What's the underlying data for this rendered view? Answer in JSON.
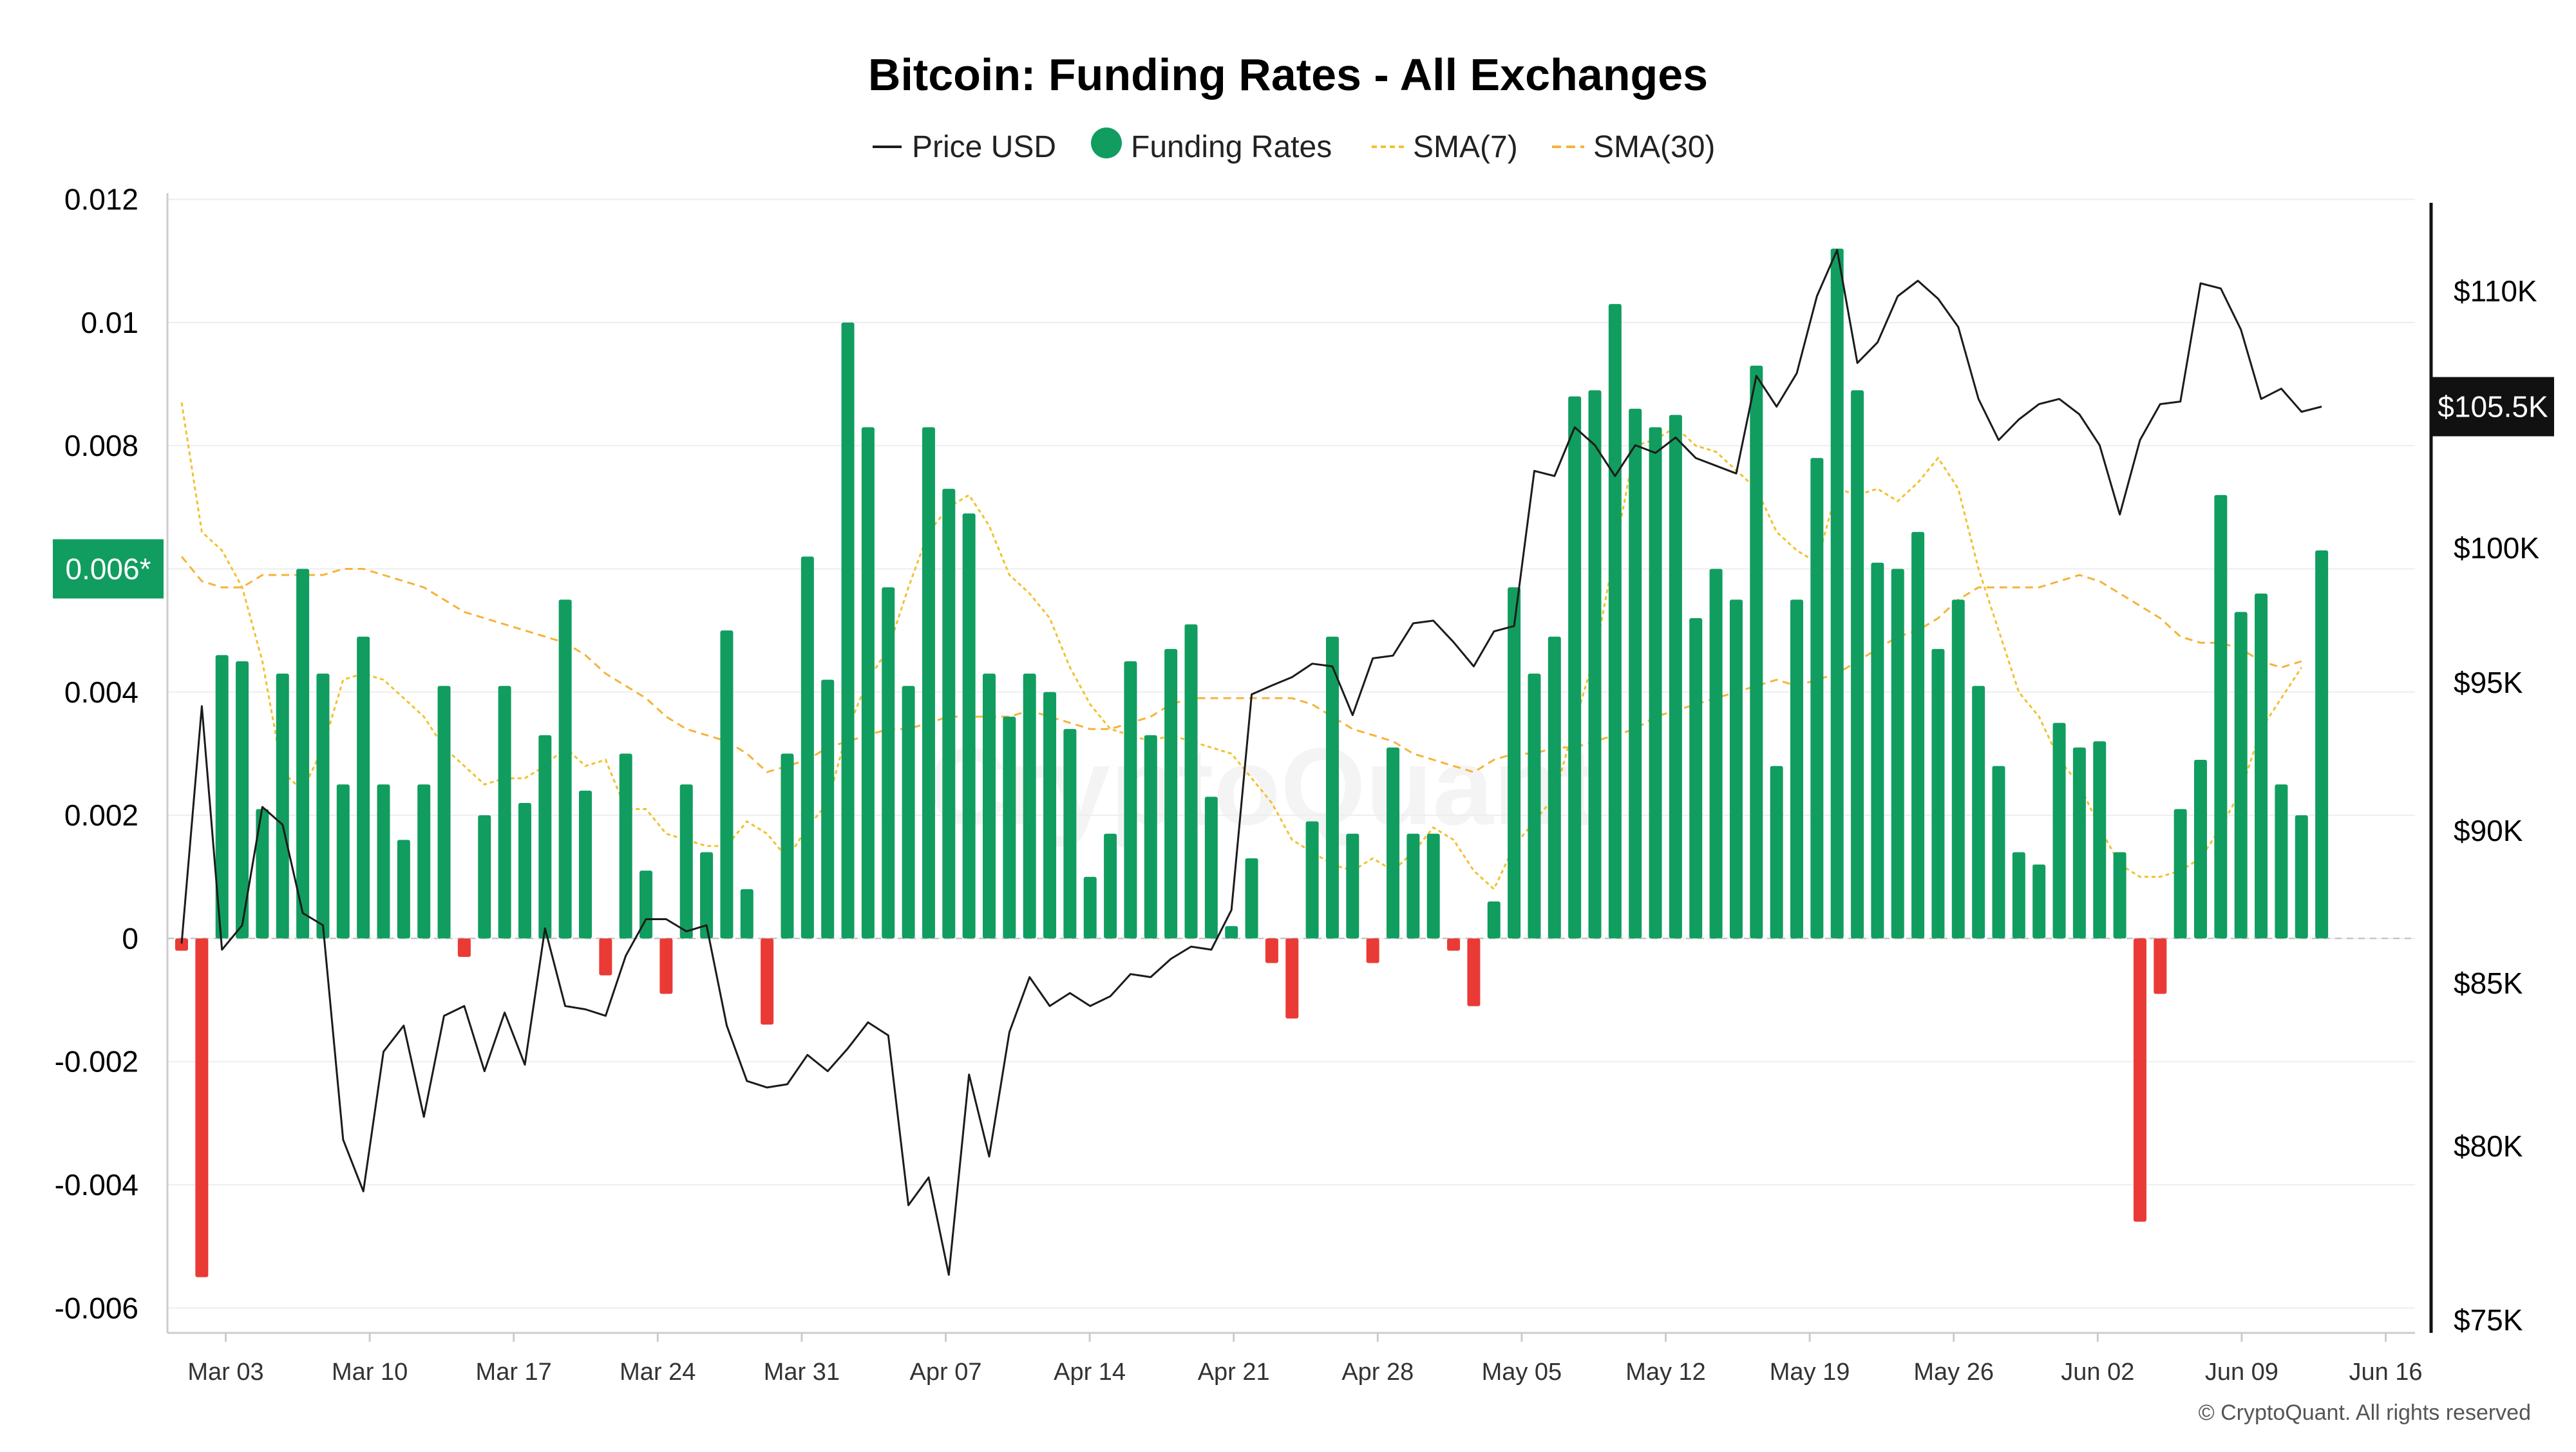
{
  "chart_data": {
    "type": "bar",
    "title": "Bitcoin: Funding Rates - All Exchanges",
    "legend": {
      "position": "top-center",
      "items": [
        {
          "label": "Price USD",
          "marker": "line"
        },
        {
          "label": "Funding Rates",
          "marker": "dot"
        },
        {
          "label": "SMA(7)",
          "marker": "dashed-line"
        },
        {
          "label": "SMA(30)",
          "marker": "dashed-line"
        }
      ]
    },
    "colors": {
      "positive": "#119d5f",
      "negative": "#ea3a36",
      "price": "#1b1b1b",
      "sma7": "#f2c12e",
      "sma30": "#f5b33a",
      "current_funding_badge": "#119d5f",
      "current_price_badge": "#111111"
    },
    "y_left": {
      "min": -0.0063,
      "max": 0.0121,
      "ticks": [
        0.012,
        0.01,
        0.008,
        0.006,
        0.004,
        0.002,
        0,
        -0.002,
        -0.004,
        -0.006
      ],
      "tick_labels": [
        "0.012",
        "0.01",
        "0.008",
        "",
        "0.004",
        "0.002",
        "0",
        "-0.002",
        "-0.004",
        "-0.006"
      ],
      "current_label": "0.006*",
      "current_value": 0.006
    },
    "y_right": {
      "min": 75000,
      "max": 113000,
      "ticks": [
        110000,
        100000,
        95000,
        90000,
        85000,
        80000,
        75000
      ],
      "tick_labels": [
        "$110K",
        "$100K",
        "$95K",
        "$90K",
        "$85K",
        "$80K",
        "$75K"
      ],
      "scale": "nonlinear",
      "current_label": "$105.5K",
      "current_value": 105500
    },
    "x": {
      "start": "Feb 28",
      "tick_labels": [
        "Mar 03",
        "Mar 10",
        "Mar 17",
        "Mar 24",
        "Mar 31",
        "Apr 07",
        "Apr 14",
        "Apr 21",
        "Apr 28",
        "May 05",
        "May 12",
        "May 19",
        "May 26",
        "Jun 02",
        "Jun 09",
        "Jun 16"
      ]
    },
    "funding_rates": [
      -0.0002,
      -0.0055,
      0.0046,
      0.0045,
      0.0021,
      0.0043,
      0.006,
      0.0043,
      0.0025,
      0.0049,
      0.0025,
      0.0016,
      0.0025,
      0.0041,
      -0.0003,
      0.002,
      0.0041,
      0.0022,
      0.0033,
      0.0055,
      0.0024,
      -0.0006,
      0.003,
      0.0011,
      -0.0009,
      0.0025,
      0.0014,
      0.005,
      0.0008,
      -0.0014,
      0.003,
      0.0062,
      0.0042,
      0.01,
      0.0083,
      0.0057,
      0.0041,
      0.0083,
      0.0073,
      0.0069,
      0.0043,
      0.0036,
      0.0043,
      0.004,
      0.0034,
      0.001,
      0.0017,
      0.0045,
      0.0033,
      0.0047,
      0.0051,
      0.0023,
      0.0002,
      0.0013,
      -0.0004,
      -0.0013,
      0.0019,
      0.0049,
      0.0017,
      -0.0004,
      0.0031,
      0.0017,
      0.0017,
      -0.0002,
      -0.0011,
      0.0006,
      0.0057,
      0.0043,
      0.0049,
      0.0088,
      0.0089,
      0.0103,
      0.0086,
      0.0083,
      0.0085,
      0.0052,
      0.006,
      0.0055,
      0.0093,
      0.0028,
      0.0055,
      0.0078,
      0.0112,
      0.0089,
      0.0061,
      0.006,
      0.0066,
      0.0047,
      0.0055,
      0.0041,
      0.0028,
      0.0014,
      0.0012,
      0.0035,
      0.0031,
      0.0032,
      0.0014,
      -0.0046,
      -0.0009,
      0.0021,
      0.0029,
      0.0072,
      0.0053,
      0.0056,
      0.0025,
      0.002,
      0.0063
    ],
    "price_usd": [
      86300,
      94200,
      86100,
      86900,
      90800,
      90200,
      87300,
      86900,
      80200,
      78700,
      82900,
      83700,
      80900,
      84000,
      84300,
      82300,
      84100,
      82500,
      86800,
      84300,
      84200,
      84000,
      85900,
      87100,
      87100,
      86700,
      86900,
      83700,
      82000,
      81800,
      81900,
      82800,
      82300,
      83000,
      83800,
      83400,
      78300,
      79100,
      76300,
      82200,
      79700,
      83500,
      85200,
      84300,
      84700,
      84300,
      84600,
      85300,
      85200,
      85800,
      86200,
      86100,
      87400,
      94600,
      94900,
      95200,
      95700,
      95600,
      93900,
      95900,
      96000,
      97200,
      97300,
      96500,
      95600,
      96900,
      97100,
      103000,
      102800,
      104700,
      104000,
      102800,
      104000,
      103700,
      104300,
      103500,
      103200,
      102900,
      106700,
      105500,
      106800,
      109800,
      111600,
      107200,
      108000,
      109800,
      110400,
      109700,
      108600,
      105800,
      104200,
      105000,
      105600,
      105800,
      105200,
      104000,
      101300,
      104200,
      105600,
      105700,
      110300,
      110100,
      108500,
      105800,
      106200,
      105300,
      105500
    ],
    "sma7": [
      0.0087,
      0.0066,
      0.0063,
      0.0057,
      0.0045,
      0.0027,
      0.0024,
      0.0031,
      0.0042,
      0.0043,
      0.0042,
      0.0039,
      0.0036,
      0.0031,
      0.0028,
      0.0025,
      0.0026,
      0.0026,
      0.0028,
      0.0031,
      0.0028,
      0.0029,
      0.0021,
      0.0021,
      0.0017,
      0.0016,
      0.0015,
      0.0015,
      0.0019,
      0.0017,
      0.0013,
      0.0018,
      0.0022,
      0.0034,
      0.0042,
      0.0047,
      0.0057,
      0.0066,
      0.007,
      0.0072,
      0.0067,
      0.0059,
      0.0056,
      0.0052,
      0.0044,
      0.0038,
      0.0034,
      0.0033,
      0.0032,
      0.0033,
      0.0032,
      0.0031,
      0.003,
      0.0026,
      0.0022,
      0.0016,
      0.0014,
      0.0012,
      0.0011,
      0.0013,
      0.0011,
      0.0014,
      0.0018,
      0.0016,
      0.0011,
      0.0008,
      0.0015,
      0.0019,
      0.0023,
      0.0035,
      0.0046,
      0.0063,
      0.008,
      0.0081,
      0.0083,
      0.008,
      0.0079,
      0.0076,
      0.0073,
      0.0066,
      0.0063,
      0.0061,
      0.0073,
      0.0072,
      0.0073,
      0.0071,
      0.0074,
      0.0078,
      0.0073,
      0.006,
      0.005,
      0.004,
      0.0036,
      0.0029,
      0.0025,
      0.0018,
      0.0012,
      0.001,
      0.001,
      0.0011,
      0.0013,
      0.0018,
      0.0024,
      0.0034,
      0.0039,
      0.0044
    ],
    "sma30": [
      0.0062,
      0.0058,
      0.0057,
      0.0057,
      0.0059,
      0.0059,
      0.0059,
      0.0059,
      0.006,
      0.006,
      0.0059,
      0.0058,
      0.0057,
      0.0055,
      0.0053,
      0.0052,
      0.0051,
      0.005,
      0.0049,
      0.0048,
      0.0046,
      0.0043,
      0.0041,
      0.0039,
      0.0036,
      0.0034,
      0.0033,
      0.0032,
      0.003,
      0.0027,
      0.0028,
      0.0029,
      0.0031,
      0.0032,
      0.0033,
      0.0034,
      0.0034,
      0.0035,
      0.0036,
      0.0036,
      0.0036,
      0.0036,
      0.0037,
      0.0036,
      0.0035,
      0.0034,
      0.0034,
      0.0035,
      0.0036,
      0.0038,
      0.0039,
      0.0039,
      0.0039,
      0.0039,
      0.0039,
      0.0039,
      0.0038,
      0.0036,
      0.0034,
      0.0033,
      0.0032,
      0.003,
      0.0029,
      0.0028,
      0.0027,
      0.0029,
      0.003,
      0.003,
      0.0031,
      0.0031,
      0.0032,
      0.0033,
      0.0034,
      0.0036,
      0.0037,
      0.0038,
      0.0039,
      0.004,
      0.0041,
      0.0042,
      0.0041,
      0.0042,
      0.0043,
      0.0045,
      0.0047,
      0.0049,
      0.005,
      0.0052,
      0.0055,
      0.0057,
      0.0057,
      0.0057,
      0.0057,
      0.0058,
      0.0059,
      0.0058,
      0.0056,
      0.0054,
      0.0052,
      0.0049,
      0.0048,
      0.0048,
      0.0047,
      0.0045,
      0.0044,
      0.0045
    ]
  },
  "watermark": "CryptoQuant",
  "footer": {
    "copyright": "© CryptoQuant. All rights reserved"
  }
}
